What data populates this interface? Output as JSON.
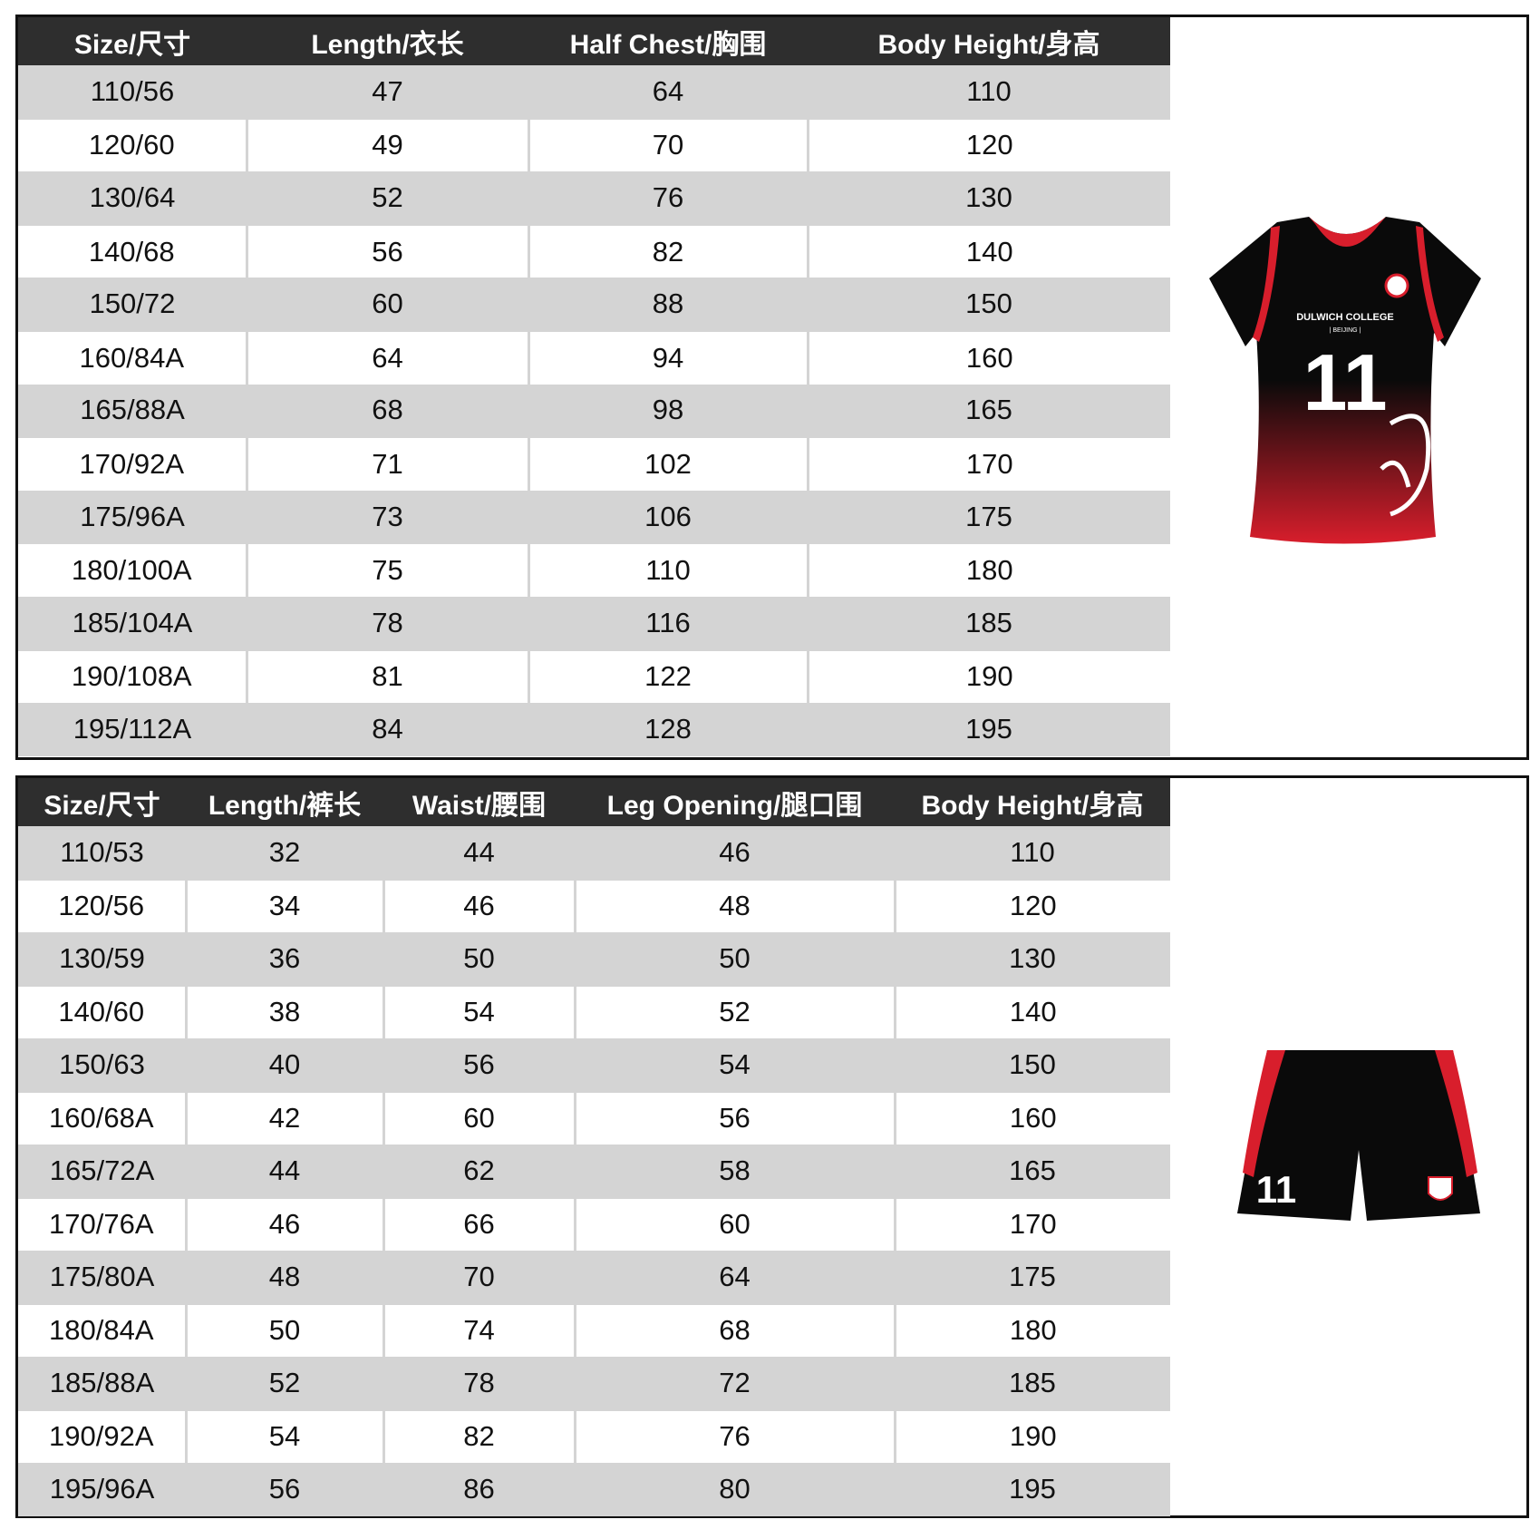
{
  "top_table": {
    "headers": [
      "Size/尺寸",
      "Length/衣长",
      "Half Chest/胸围",
      "Body Height/身高"
    ],
    "rows": [
      [
        "110/56",
        "47",
        "64",
        "110"
      ],
      [
        "120/60",
        "49",
        "70",
        "120"
      ],
      [
        "130/64",
        "52",
        "76",
        "130"
      ],
      [
        "140/68",
        "56",
        "82",
        "140"
      ],
      [
        "150/72",
        "60",
        "88",
        "150"
      ],
      [
        "160/84A",
        "64",
        "94",
        "160"
      ],
      [
        "165/88A",
        "68",
        "98",
        "165"
      ],
      [
        "170/92A",
        "71",
        "102",
        "170"
      ],
      [
        "175/96A",
        "73",
        "106",
        "175"
      ],
      [
        "180/100A",
        "75",
        "110",
        "180"
      ],
      [
        "185/104A",
        "78",
        "116",
        "185"
      ],
      [
        "190/108A",
        "81",
        "122",
        "190"
      ],
      [
        "195/112A",
        "84",
        "128",
        "195"
      ]
    ]
  },
  "bottom_table": {
    "headers": [
      "Size/尺寸",
      "Length/裤长",
      "Waist/腰围",
      "Leg Opening/腿口围",
      "Body Height/身高"
    ],
    "rows": [
      [
        "110/53",
        "32",
        "44",
        "46",
        "110"
      ],
      [
        "120/56",
        "34",
        "46",
        "48",
        "120"
      ],
      [
        "130/59",
        "36",
        "50",
        "50",
        "130"
      ],
      [
        "140/60",
        "38",
        "54",
        "52",
        "140"
      ],
      [
        "150/63",
        "40",
        "56",
        "54",
        "150"
      ],
      [
        "160/68A",
        "42",
        "60",
        "56",
        "160"
      ],
      [
        "165/72A",
        "44",
        "62",
        "58",
        "165"
      ],
      [
        "170/76A",
        "46",
        "66",
        "60",
        "170"
      ],
      [
        "175/80A",
        "48",
        "70",
        "64",
        "175"
      ],
      [
        "180/84A",
        "50",
        "74",
        "68",
        "180"
      ],
      [
        "185/88A",
        "52",
        "78",
        "72",
        "185"
      ],
      [
        "190/92A",
        "54",
        "82",
        "76",
        "190"
      ],
      [
        "195/96A",
        "56",
        "86",
        "80",
        "195"
      ]
    ]
  },
  "jersey": {
    "school": "DULWICH COLLEGE",
    "city": "| BEIJING |",
    "number": "11"
  },
  "shorts": {
    "number": "11"
  },
  "colors": {
    "header_bg": "#2e2e2e",
    "row_gray": "#d4d4d4",
    "kit_red": "#d81e2c",
    "kit_black": "#0a0a0a"
  }
}
